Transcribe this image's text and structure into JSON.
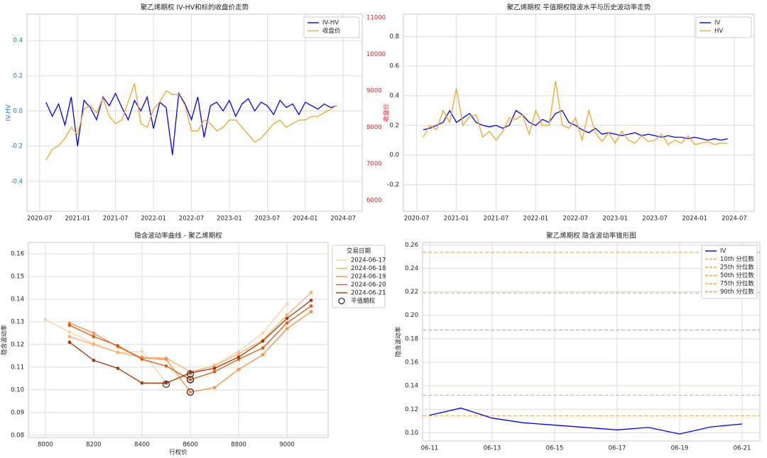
{
  "chart_data": [
    {
      "type": "line",
      "title": "聚乙烯期权 IV-HV和标的收盘价走势",
      "x": [
        "2020-08",
        "2020-09",
        "2020-10",
        "2020-11",
        "2020-12",
        "2021-01",
        "2021-02",
        "2021-03",
        "2021-04",
        "2021-05",
        "2021-06",
        "2021-07",
        "2021-08",
        "2021-09",
        "2021-10",
        "2021-11",
        "2021-12",
        "2022-01",
        "2022-02",
        "2022-03",
        "2022-04",
        "2022-05",
        "2022-06",
        "2022-07",
        "2022-08",
        "2022-09",
        "2022-10",
        "2022-11",
        "2022-12",
        "2023-01",
        "2023-02",
        "2023-03",
        "2023-04",
        "2023-05",
        "2023-06",
        "2023-07",
        "2023-08",
        "2023-09",
        "2023-10",
        "2023-11",
        "2023-12",
        "2024-01",
        "2024-02",
        "2024-03",
        "2024-04",
        "2024-05",
        "2024-06"
      ],
      "xlim": [
        "2020-05",
        "2024-10"
      ],
      "xticks": [
        "2020-07",
        "2021-01",
        "2021-07",
        "2022-01",
        "2022-07",
        "2023-01",
        "2023-07",
        "2024-01",
        "2024-07"
      ],
      "ylim": [
        -0.57,
        0.55
      ],
      "yticks": [
        -0.4,
        -0.2,
        {
          "value": 0,
          "label": "0.0"
        },
        0.2,
        0.4
      ],
      "y2lim": [
        5700,
        11100
      ],
      "y2ticks": [
        6000,
        7000,
        8000,
        9000,
        10000,
        11000
      ],
      "ylabel": "IV-HV",
      "y2label": "收盘价",
      "grid": true,
      "legend": "upper right",
      "series": [
        {
          "name": "IV-HV",
          "color": "#0000ff",
          "values": [
            0.05,
            -0.03,
            0.04,
            -0.08,
            0.08,
            -0.2,
            0.06,
            0.02,
            -0.05,
            0.08,
            0.03,
            0.1,
            0.02,
            -0.05,
            0.06,
            0.0,
            0.08,
            -0.1,
            0.05,
            0.02,
            -0.25,
            0.1,
            0.04,
            -0.05,
            0.08,
            -0.15,
            0.03,
            0.05,
            0.0,
            0.06,
            -0.03,
            0.04,
            0.07,
            0.0,
            0.05,
            0.03,
            -0.02,
            0.06,
            0.02,
            0.04,
            -0.02,
            0.05,
            0.03,
            0.01,
            0.04,
            0.02,
            0.03
          ]
        },
        {
          "name": "收盘价",
          "color": "#f5a623",
          "axis": "y2",
          "values": [
            7100,
            7400,
            7500,
            7700,
            8000,
            7800,
            8500,
            8600,
            8400,
            8800,
            8300,
            8100,
            8200,
            8700,
            9200,
            8100,
            8000,
            8500,
            8700,
            9000,
            8900,
            8900,
            8600,
            7900,
            7900,
            8200,
            8100,
            7900,
            8000,
            8200,
            8200,
            8000,
            7800,
            7600,
            7700,
            7900,
            8100,
            8200,
            8000,
            8100,
            8200,
            8200,
            8300,
            8300,
            8400,
            8500,
            8600
          ]
        }
      ]
    },
    {
      "type": "line",
      "title": "聚乙烯期权 平值期权隐波水平与历史波动率走势",
      "x": [
        "2020-08",
        "2020-09",
        "2020-10",
        "2020-11",
        "2020-12",
        "2021-01",
        "2021-02",
        "2021-03",
        "2021-04",
        "2021-05",
        "2021-06",
        "2021-07",
        "2021-08",
        "2021-09",
        "2021-10",
        "2021-11",
        "2021-12",
        "2022-01",
        "2022-02",
        "2022-03",
        "2022-04",
        "2022-05",
        "2022-06",
        "2022-07",
        "2022-08",
        "2022-09",
        "2022-10",
        "2022-11",
        "2022-12",
        "2023-01",
        "2023-02",
        "2023-03",
        "2023-04",
        "2023-05",
        "2023-06",
        "2023-07",
        "2023-08",
        "2023-09",
        "2023-10",
        "2023-11",
        "2023-12",
        "2024-01",
        "2024-02",
        "2024-03",
        "2024-04",
        "2024-05",
        "2024-06"
      ],
      "xlim": [
        "2020-05",
        "2024-10"
      ],
      "xticks": [
        "2020-07",
        "2021-01",
        "2021-07",
        "2022-01",
        "2022-07",
        "2023-01",
        "2023-07",
        "2024-01",
        "2024-07"
      ],
      "ylim": [
        -0.38,
        0.95
      ],
      "yticks": [
        -0.2,
        {
          "value": 0,
          "label": "0.0"
        },
        0.2,
        0.4,
        0.6,
        0.8
      ],
      "grid": true,
      "legend": "upper right",
      "series": [
        {
          "name": "IV",
          "color": "#0000ff",
          "values": [
            0.17,
            0.18,
            0.2,
            0.22,
            0.3,
            0.22,
            0.25,
            0.28,
            0.22,
            0.2,
            0.19,
            0.2,
            0.18,
            0.2,
            0.3,
            0.27,
            0.22,
            0.2,
            0.24,
            0.22,
            0.28,
            0.3,
            0.22,
            0.2,
            0.17,
            0.15,
            0.18,
            0.14,
            0.15,
            0.14,
            0.13,
            0.14,
            0.15,
            0.13,
            0.14,
            0.13,
            0.12,
            0.13,
            0.12,
            0.12,
            0.11,
            0.12,
            0.11,
            0.1,
            0.11,
            0.1,
            0.11
          ]
        },
        {
          "name": "HV",
          "color": "#f5a623",
          "values": [
            0.12,
            0.2,
            0.17,
            0.3,
            0.22,
            0.45,
            0.2,
            0.26,
            0.27,
            0.12,
            0.16,
            0.1,
            0.16,
            0.25,
            0.24,
            0.27,
            0.14,
            0.3,
            0.2,
            0.2,
            0.5,
            0.2,
            0.18,
            0.25,
            0.1,
            0.3,
            0.15,
            0.09,
            0.15,
            0.08,
            0.16,
            0.1,
            0.08,
            0.13,
            0.09,
            0.1,
            0.14,
            0.07,
            0.1,
            0.08,
            0.13,
            0.07,
            0.08,
            0.09,
            0.07,
            0.08,
            0.08
          ]
        }
      ]
    },
    {
      "type": "line",
      "title": "隐含波动率曲线 - 聚乙烯期权",
      "markers": true,
      "x": [
        8000,
        8100,
        8200,
        8300,
        8400,
        8500,
        8600,
        8700,
        8800,
        8900,
        9000,
        9100
      ],
      "xlim": [
        7930,
        9170
      ],
      "xticks": [
        8000,
        8200,
        8400,
        8600,
        8800,
        9000
      ],
      "ylim": [
        0.079,
        0.165
      ],
      "yticks": [
        0.08,
        0.09,
        {
          "value": 0.1,
          "label": "0.10"
        },
        0.11,
        0.12,
        0.13,
        0.14,
        0.15,
        0.16
      ],
      "xlabel": "行权价",
      "ylabel": "隐含波动率",
      "grid": true,
      "legend": "outside right",
      "legend_title": "交易日期",
      "series": [
        {
          "name": "2024-06-17",
          "color": "#fdd0a2",
          "values": [
            0.131,
            0.1255,
            0.1205,
            0.1165,
            0.117,
            0.103,
            0.107,
            0.111,
            0.117,
            0.125,
            0.138,
            null
          ]
        },
        {
          "name": "2024-06-18",
          "color": "#fdae6b",
          "values": [
            null,
            0.1235,
            0.12,
            0.1165,
            0.1145,
            0.114,
            0.108,
            0.1105,
            0.116,
            0.122,
            0.133,
            0.143
          ]
        },
        {
          "name": "2024-06-19",
          "color": "#fd8d3c",
          "values": [
            null,
            0.1295,
            0.125,
            0.119,
            0.114,
            0.1135,
            0.099,
            0.101,
            0.109,
            0.1155,
            0.127,
            0.1345
          ]
        },
        {
          "name": "2024-06-20",
          "color": "#e6550d",
          "values": [
            null,
            0.1285,
            0.1235,
            0.1195,
            0.1135,
            0.1105,
            0.1045,
            0.108,
            0.1135,
            0.1185,
            0.1295,
            0.137
          ]
        },
        {
          "name": "2024-06-21",
          "color": "#a63603",
          "values": [
            null,
            0.121,
            0.113,
            0.1095,
            0.103,
            0.103,
            0.1075,
            0.1095,
            0.1145,
            0.1215,
            0.1315,
            0.1395
          ]
        },
        {
          "name": "平值期权",
          "type": "scatter",
          "color": "#333333",
          "x": [
            8500,
            8600,
            8600,
            8600,
            8600
          ],
          "values": [
            0.1025,
            0.107,
            0.1045,
            0.099,
            0.1045
          ]
        }
      ]
    },
    {
      "type": "line",
      "title": "聚乙烯期权 隐含波动率锥形图",
      "x": [
        "06-11",
        "06-12",
        "06-13",
        "06-14",
        "06-17",
        "06-18",
        "06-19",
        "06-20",
        "06-21"
      ],
      "xlim": [
        "06-11",
        "06-21"
      ],
      "xticks": [
        "06-11",
        "06-13",
        "06-15",
        "06-17",
        "06-19",
        "06-21"
      ],
      "ylim": [
        0.093,
        0.262
      ],
      "yticks": [
        {
          "value": 0.1,
          "label": "0.10"
        },
        0.12,
        0.14,
        0.16,
        0.18,
        {
          "value": 0.2,
          "label": "0.20"
        },
        0.22,
        0.24,
        0.26
      ],
      "ylabel": "隐含波动率",
      "grid": true,
      "legend": "upper right",
      "series": [
        {
          "name": "IV",
          "color": "#0000ff",
          "values": [
            0.115,
            0.121,
            0.1125,
            0.1085,
            0.1025,
            0.1045,
            0.099,
            0.105,
            0.1075
          ]
        }
      ],
      "hlines": [
        {
          "name": "10th 分位数",
          "color": "#f5a623",
          "value": 0.1145
        },
        {
          "name": "25th 分位数",
          "color": "#f5a623",
          "value": 0.132
        },
        {
          "name": "50th 分位数",
          "color": "#f5a623",
          "value": 0.1875
        },
        {
          "name": "75th 分位数",
          "color": "#f5a623",
          "value": 0.219
        },
        {
          "name": "90th 分位数",
          "color": "#f5a623",
          "value": 0.2535
        }
      ]
    }
  ]
}
